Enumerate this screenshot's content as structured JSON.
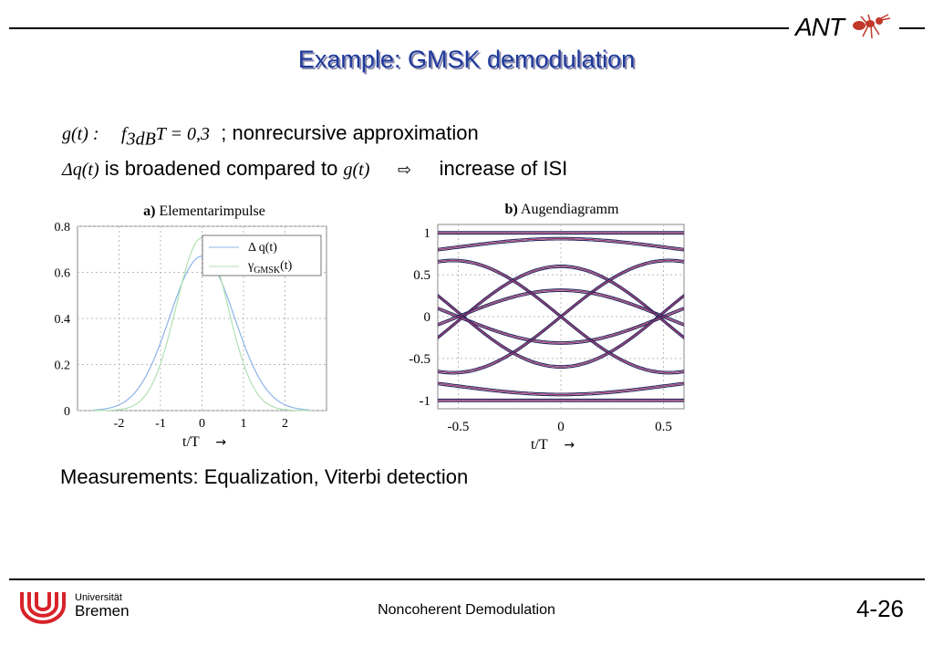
{
  "title": "Example: GMSK demodulation",
  "logo_text": "ANT",
  "line1": {
    "math_g": "g(t) :",
    "math_f": "f",
    "math_sub": "3dB",
    "math_rest": "T = 0,3",
    "text": "; nonrecursive approximation"
  },
  "line2": {
    "math_dq": "Δq(t)",
    "text_mid": "is broadened compared to",
    "math_g": "g(t)",
    "arrow": "⇨",
    "text_end": "increase of ISI"
  },
  "chart_a": {
    "title_bold": "a)",
    "title": "Elementarimpulse",
    "xlabel": "t/T",
    "xlabel_arrow": "→",
    "x_ticks": [
      "-2",
      "-1",
      "0",
      "1",
      "2"
    ],
    "y_ticks": [
      "0",
      "0.2",
      "0.4",
      "0.6",
      "0.8"
    ],
    "legend_1": "Δ q(t)",
    "legend_2_a": "γ",
    "legend_2_sub": "GMSK",
    "legend_2_b": "(t)"
  },
  "chart_b": {
    "title_bold": "b)",
    "title": "Augendiagramm",
    "xlabel": "t/T",
    "xlabel_arrow": "→",
    "x_ticks": [
      "-0.5",
      "0",
      "0.5"
    ],
    "y_ticks": [
      "1",
      "0.5",
      "0",
      "-0.5",
      "-1"
    ]
  },
  "measurements": "Measurements: Equalization, Viterbi detection",
  "footer": {
    "uni_small": "Universität",
    "uni_big": "Bremen",
    "center": "Noncoherent Demodulation",
    "page": "4-26"
  },
  "colors": {
    "title": "#1f3a9a",
    "curve_a": "#8cb4e8",
    "curve_b": "#b0e0b0",
    "eye_dark": "#2a2a60",
    "eye_magenta": "#a0306a"
  },
  "chart_data": [
    {
      "type": "line",
      "title": "a) Elementarimpulse",
      "xlabel": "t/T",
      "xlim": [
        -3,
        3
      ],
      "ylim": [
        0,
        0.8
      ],
      "grid": true,
      "legend": "top-right",
      "series": [
        {
          "name": "Δ q(t)",
          "x": [
            -3,
            -2,
            -1.5,
            -1,
            -0.5,
            0,
            0.5,
            1,
            1.5,
            2,
            3
          ],
          "y": [
            0,
            0.03,
            0.1,
            0.3,
            0.55,
            0.67,
            0.55,
            0.3,
            0.1,
            0.03,
            0
          ]
        },
        {
          "name": "γGMSK(t)",
          "x": [
            -3,
            -2,
            -1.5,
            -1,
            -0.5,
            0,
            0.5,
            1,
            1.5,
            2,
            3
          ],
          "y": [
            0,
            0.0,
            0.04,
            0.22,
            0.58,
            0.75,
            0.58,
            0.22,
            0.04,
            0.0,
            0
          ]
        }
      ]
    },
    {
      "type": "line",
      "title": "b) Augendiagramm",
      "xlabel": "t/T",
      "xlim": [
        -0.6,
        0.6
      ],
      "ylim": [
        -1.1,
        1.1
      ],
      "grid": true,
      "eye_levels": [
        -1,
        -0.67,
        -0.3,
        0,
        0.3,
        0.67,
        1
      ]
    }
  ]
}
